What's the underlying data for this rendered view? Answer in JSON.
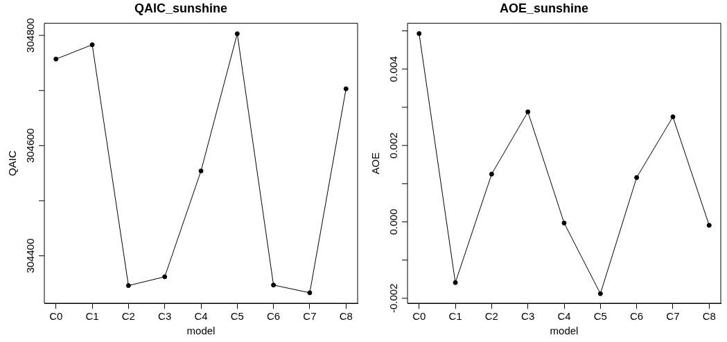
{
  "chart_data": [
    {
      "type": "line",
      "title": "QAIC_sunshine",
      "xlabel": "model",
      "ylabel": "QAIC",
      "categories": [
        "C0",
        "C1",
        "C2",
        "C3",
        "C4",
        "C5",
        "C6",
        "C7",
        "C8"
      ],
      "series": [
        {
          "color": "#000000",
          "values": [
            304757,
            304783,
            304346,
            304362,
            304554,
            304803,
            304347,
            304333,
            304703
          ]
        }
      ],
      "ylim": [
        304314,
        304822
      ],
      "yticks": [
        304400,
        {
          "value": 304500,
          "label": null
        },
        304600,
        {
          "value": 304700,
          "label": null
        },
        304800
      ],
      "marker": "circle",
      "line_style": "solid",
      "grid": false,
      "legend": false
    },
    {
      "type": "line",
      "title": "AOE_sunshine",
      "xlabel": "model",
      "ylabel": "AOE",
      "categories": [
        "C0",
        "C1",
        "C2",
        "C3",
        "C4",
        "C5",
        "C6",
        "C7",
        "C8"
      ],
      "series": [
        {
          "color": "#000000",
          "values": [
            0.00493,
            -0.00159,
            0.00125,
            0.00288,
            -3e-05,
            -0.00188,
            0.00116,
            0.00275,
            -9e-05
          ]
        }
      ],
      "ylim": [
        -0.00213,
        0.0052
      ],
      "yticks": [
        {
          "value": -0.002,
          "label": "-0.002"
        },
        {
          "value": -0.001,
          "label": null
        },
        {
          "value": 0,
          "label": "0.000"
        },
        {
          "value": 0.001,
          "label": null
        },
        {
          "value": 0.002,
          "label": "0.002"
        },
        {
          "value": 0.003,
          "label": null
        },
        {
          "value": 0.004,
          "label": "0.004"
        },
        {
          "value": 0.005,
          "label": null
        }
      ],
      "marker": "circle",
      "line_style": "solid",
      "grid": false,
      "legend": false
    }
  ]
}
